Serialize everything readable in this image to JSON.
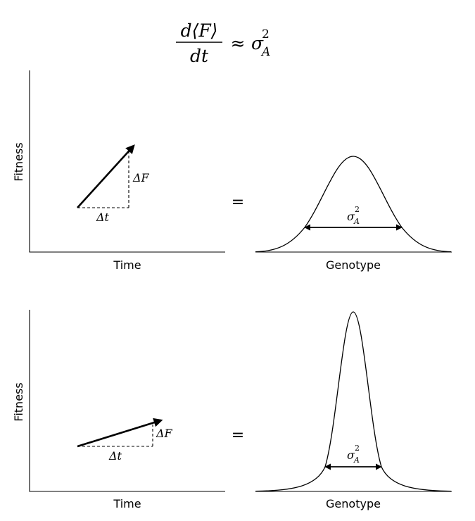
{
  "equation": {
    "numerator": "d⟨F⟩",
    "denominator": "dt",
    "relation": "≈",
    "rhs_symbol": "σ",
    "rhs_superscript": "2",
    "rhs_subscript": "A"
  },
  "panels": [
    {
      "ylabel": "Fitness",
      "xlabel": "Time",
      "delta_t": "Δt",
      "delta_F": "ΔF",
      "equals": "=",
      "genotype_label": "Genotype",
      "variance_symbol": "σ",
      "variance_superscript": "2",
      "variance_subscript": "A"
    },
    {
      "ylabel": "Fitness",
      "xlabel": "Time",
      "delta_t": "Δt",
      "delta_F": "ΔF",
      "equals": "=",
      "genotype_label": "Genotype",
      "variance_symbol": "σ",
      "variance_superscript": "2",
      "variance_subscript": "A"
    }
  ]
}
